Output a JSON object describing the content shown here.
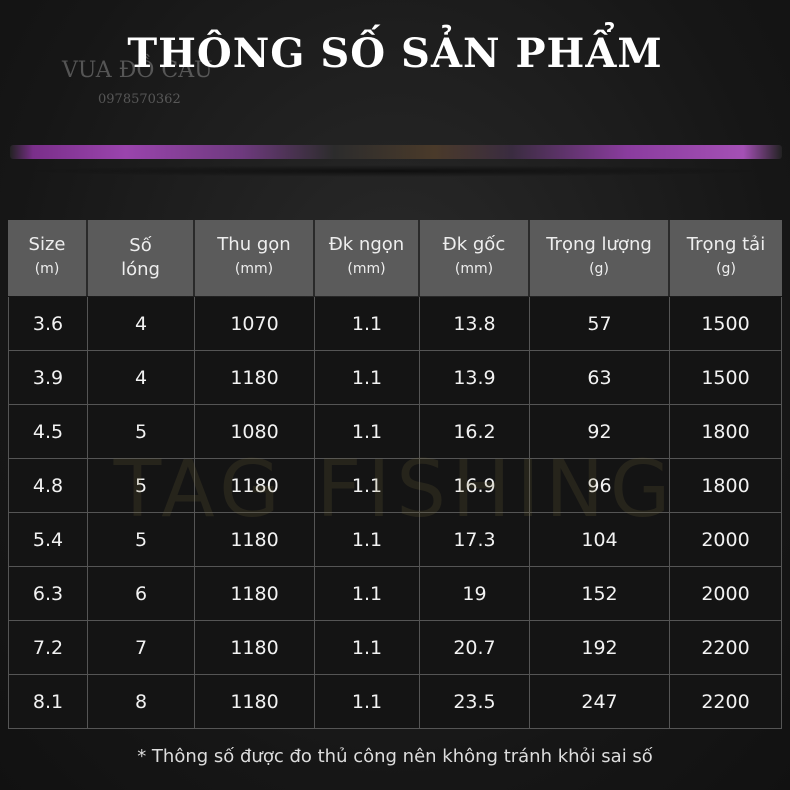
{
  "header": {
    "title": "THÔNG SỐ SẢN PHẨM",
    "logo_text": "VUA ĐỒ CÂU",
    "phone": "0978570362"
  },
  "watermark": "TAG FISHING",
  "table": {
    "columns": [
      {
        "name": "Size",
        "unit": "(m)"
      },
      {
        "name": "Số lóng"
      },
      {
        "name": "Thu gọn",
        "unit": "(mm)"
      },
      {
        "name": "Đk ngọn",
        "unit": "(mm)"
      },
      {
        "name": "Đk gốc",
        "unit": "(mm)"
      },
      {
        "name": "Trọng lượng",
        "unit": "(g)"
      },
      {
        "name": "Trọng tải",
        "unit": "(g)"
      }
    ],
    "rows": [
      [
        3.6,
        4,
        1070,
        1.1,
        13.8,
        57,
        1500
      ],
      [
        3.9,
        4,
        1180,
        1.1,
        13.9,
        63,
        1500
      ],
      [
        4.5,
        5,
        1080,
        1.1,
        16.2,
        92,
        1800
      ],
      [
        4.8,
        5,
        1180,
        1.1,
        16.9,
        96,
        1800
      ],
      [
        5.4,
        5,
        1180,
        1.1,
        17.3,
        104,
        2000
      ],
      [
        6.3,
        6,
        1180,
        1.1,
        19,
        152,
        2000
      ],
      [
        7.2,
        7,
        1180,
        1.1,
        20.7,
        192,
        2200
      ],
      [
        8.1,
        8,
        1180,
        1.1,
        23.5,
        247,
        2200
      ]
    ]
  },
  "footnote": "* Thông số được đo thủ công nên không tránh khỏi sai số"
}
